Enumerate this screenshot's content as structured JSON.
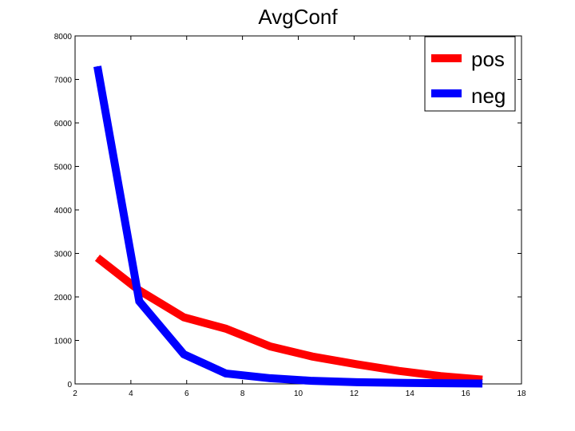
{
  "chart_data": {
    "type": "line",
    "title": "AvgConf",
    "xlabel": "",
    "ylabel": "",
    "xlim": [
      2,
      18
    ],
    "ylim": [
      0,
      8000
    ],
    "xticks": [
      2,
      4,
      6,
      8,
      10,
      12,
      14,
      16,
      18
    ],
    "yticks": [
      0,
      1000,
      2000,
      3000,
      4000,
      5000,
      6000,
      7000,
      8000
    ],
    "grid": false,
    "legend_position": "top-right",
    "series": [
      {
        "name": "pos",
        "color": "#ff0000",
        "x": [
          2.8,
          4.3,
          5.9,
          7.4,
          9.0,
          10.5,
          12.1,
          13.6,
          15.1,
          16.6
        ],
        "y": [
          2900,
          2150,
          1530,
          1270,
          860,
          630,
          450,
          300,
          180,
          100
        ]
      },
      {
        "name": "neg",
        "color": "#0000ff",
        "x": [
          2.8,
          4.3,
          5.9,
          7.4,
          9.0,
          10.5,
          12.1,
          13.6,
          15.1,
          16.6
        ],
        "y": [
          7300,
          1900,
          680,
          240,
          130,
          70,
          40,
          25,
          15,
          10
        ]
      }
    ]
  }
}
